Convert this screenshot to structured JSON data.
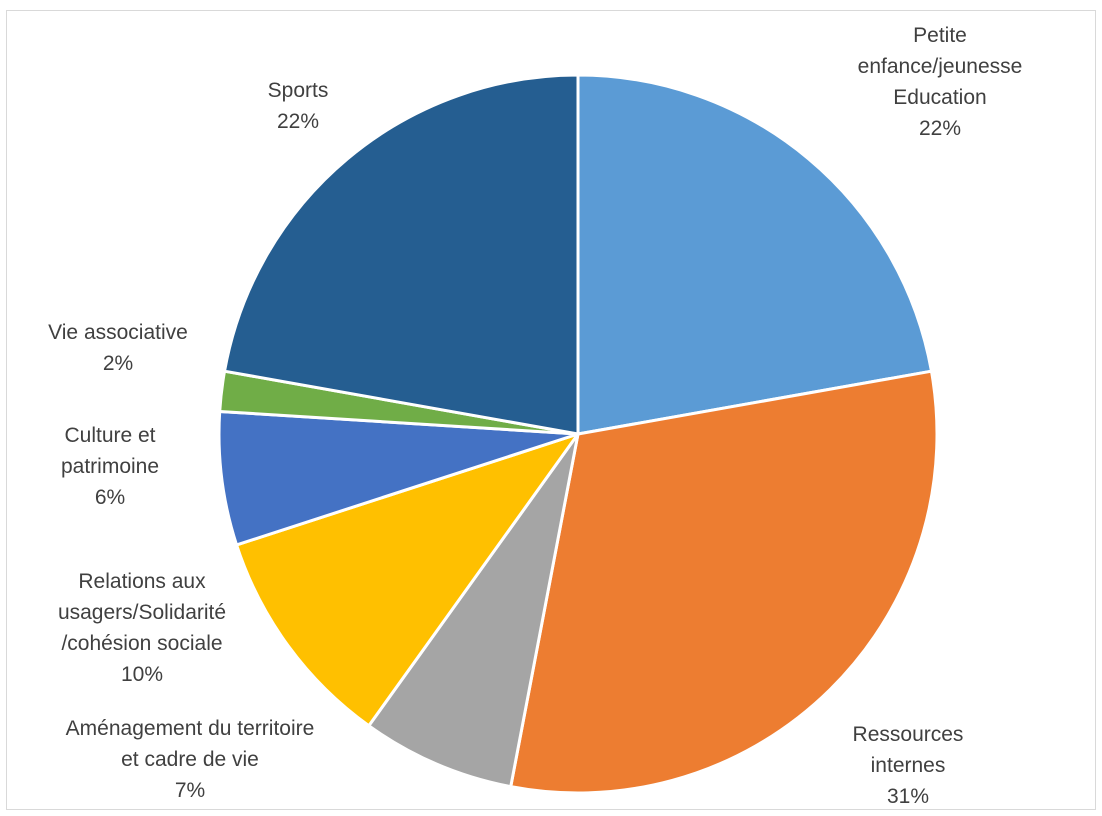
{
  "chart_data": {
    "type": "pie",
    "title": "",
    "start_angle_deg": 0,
    "direction": "clockwise",
    "slices": [
      {
        "lines": [
          "Petite",
          "enfance/jeunesse",
          "Education"
        ],
        "pct_label": "22%",
        "value": 22.2,
        "color": "#5b9bd5"
      },
      {
        "lines": [
          "Ressources",
          "internes"
        ],
        "pct_label": "31%",
        "value": 30.8,
        "color": "#ed7d31"
      },
      {
        "lines": [
          "Aménagement du territoire",
          "et cadre de vie"
        ],
        "pct_label": "7%",
        "value": 6.9,
        "color": "#a5a5a5"
      },
      {
        "lines": [
          "Relations aux",
          "usagers/Solidarité",
          "/cohésion sociale"
        ],
        "pct_label": "10%",
        "value": 10.1,
        "color": "#ffc000"
      },
      {
        "lines": [
          "Culture et",
          "patrimoine"
        ],
        "pct_label": "6%",
        "value": 6.0,
        "color": "#4472c4"
      },
      {
        "lines": [
          "Vie associative"
        ],
        "pct_label": "2%",
        "value": 1.8,
        "color": "#70ad47"
      },
      {
        "lines": [
          "Sports"
        ],
        "pct_label": "22%",
        "value": 22.2,
        "color": "#255e91"
      }
    ]
  }
}
